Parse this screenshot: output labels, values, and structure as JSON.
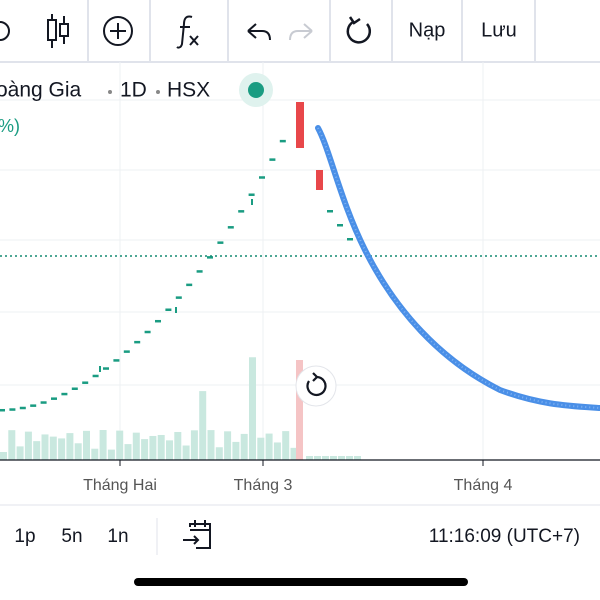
{
  "toolbar": {
    "buttons": [
      "Nạp",
      "Lưu"
    ]
  },
  "symbol": {
    "name": "oàng Gia",
    "interval": "1D",
    "exchange": "HSX",
    "change": "%)"
  },
  "x_axis": {
    "labels": [
      "Tháng Hai",
      "Tháng 3",
      "Tháng 4"
    ]
  },
  "footer": {
    "ranges": [
      "1p",
      "5n",
      "1n"
    ],
    "time": "11:16:09 (UTC+7)"
  }
}
